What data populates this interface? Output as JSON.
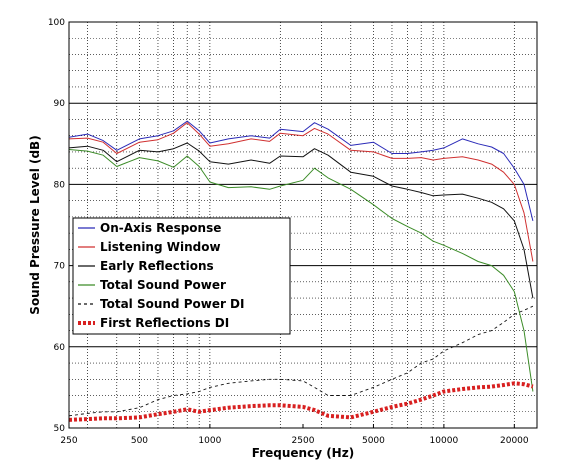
{
  "chart_data": {
    "type": "line",
    "title": "",
    "xlabel": "Frequency (Hz)",
    "ylabel": "Sound Pressure Level (dB)",
    "x_scale": "log",
    "xlim": [
      250,
      25000
    ],
    "ylim": [
      50,
      100
    ],
    "x_ticks": [
      250,
      500,
      1000,
      2500,
      5000,
      10000,
      20000
    ],
    "x_tick_labels": [
      "250",
      "500",
      "1000",
      "2500",
      "5000",
      "10000",
      "20000"
    ],
    "y_ticks": [
      50,
      60,
      70,
      80,
      90,
      100
    ],
    "y_tick_labels": [
      "50",
      "60",
      "70",
      "80",
      "90",
      "100"
    ],
    "grid": true,
    "legend_position": "middle-left",
    "x": [
      250,
      300,
      350,
      400,
      500,
      600,
      700,
      800,
      900,
      1000,
      1200,
      1500,
      1800,
      2000,
      2500,
      2800,
      3200,
      4000,
      5000,
      6000,
      7000,
      8000,
      9000,
      10000,
      12000,
      14000,
      16000,
      18000,
      20000,
      22000,
      24000
    ],
    "series": [
      {
        "name": "On-Axis Response",
        "color": "#2b2bb8",
        "style": "solid",
        "values": [
          85.8,
          86.2,
          85.4,
          84.2,
          85.6,
          86.0,
          86.6,
          87.8,
          86.6,
          85.1,
          85.6,
          86.0,
          85.7,
          86.8,
          86.5,
          87.6,
          86.8,
          84.8,
          85.2,
          83.8,
          83.8,
          84.0,
          84.2,
          84.5,
          85.6,
          85.0,
          84.6,
          83.8,
          82.0,
          80.0,
          75.5
        ]
      },
      {
        "name": "Listening Window",
        "color": "#d03030",
        "style": "solid",
        "values": [
          85.6,
          85.7,
          85.2,
          83.8,
          85.2,
          85.5,
          86.3,
          87.6,
          86.2,
          84.7,
          85.0,
          85.6,
          85.3,
          86.3,
          86.0,
          86.9,
          86.2,
          84.2,
          84.0,
          83.2,
          83.2,
          83.3,
          83.0,
          83.2,
          83.4,
          83.0,
          82.5,
          81.5,
          80.0,
          76.5,
          70.5
        ]
      },
      {
        "name": "Early Reflections",
        "color": "#111111",
        "style": "solid",
        "values": [
          84.5,
          84.7,
          84.2,
          82.8,
          84.2,
          84.0,
          84.4,
          85.1,
          84.1,
          82.8,
          82.5,
          83.0,
          82.6,
          83.5,
          83.4,
          84.4,
          83.6,
          81.5,
          81.0,
          79.8,
          79.4,
          79.0,
          78.6,
          78.7,
          78.8,
          78.3,
          77.8,
          77.0,
          75.5,
          72.0,
          66.0
        ]
      },
      {
        "name": "Total Sound Power",
        "color": "#3c8c28",
        "style": "solid",
        "values": [
          84.3,
          84.1,
          83.6,
          82.2,
          83.3,
          82.9,
          82.1,
          83.5,
          82.2,
          80.3,
          79.6,
          79.7,
          79.4,
          79.8,
          80.5,
          82.0,
          80.8,
          79.4,
          77.5,
          75.8,
          74.8,
          74.0,
          73.0,
          72.5,
          71.5,
          70.5,
          70.0,
          68.8,
          66.8,
          62.0,
          54.5
        ]
      },
      {
        "name": "Total Sound Power DI",
        "color": "#111111",
        "style": "dashed",
        "values": [
          51.5,
          51.8,
          52.0,
          52.0,
          52.5,
          53.5,
          54.0,
          54.2,
          54.5,
          55.0,
          55.5,
          55.8,
          56.0,
          56.0,
          55.8,
          55.0,
          54.0,
          54.0,
          55.0,
          56.0,
          56.8,
          58.0,
          58.5,
          59.5,
          60.5,
          61.5,
          62.0,
          63.0,
          64.0,
          64.5,
          65.0
        ]
      },
      {
        "name": "First Reflections DI",
        "color": "#d82020",
        "style": "dotted-thick",
        "values": [
          51.0,
          51.1,
          51.2,
          51.2,
          51.3,
          51.7,
          52.0,
          52.3,
          52.0,
          52.2,
          52.5,
          52.7,
          52.8,
          52.8,
          52.6,
          52.2,
          51.5,
          51.3,
          52.0,
          52.6,
          53.0,
          53.5,
          54.0,
          54.5,
          54.8,
          55.0,
          55.1,
          55.3,
          55.5,
          55.4,
          55.1
        ]
      }
    ]
  }
}
